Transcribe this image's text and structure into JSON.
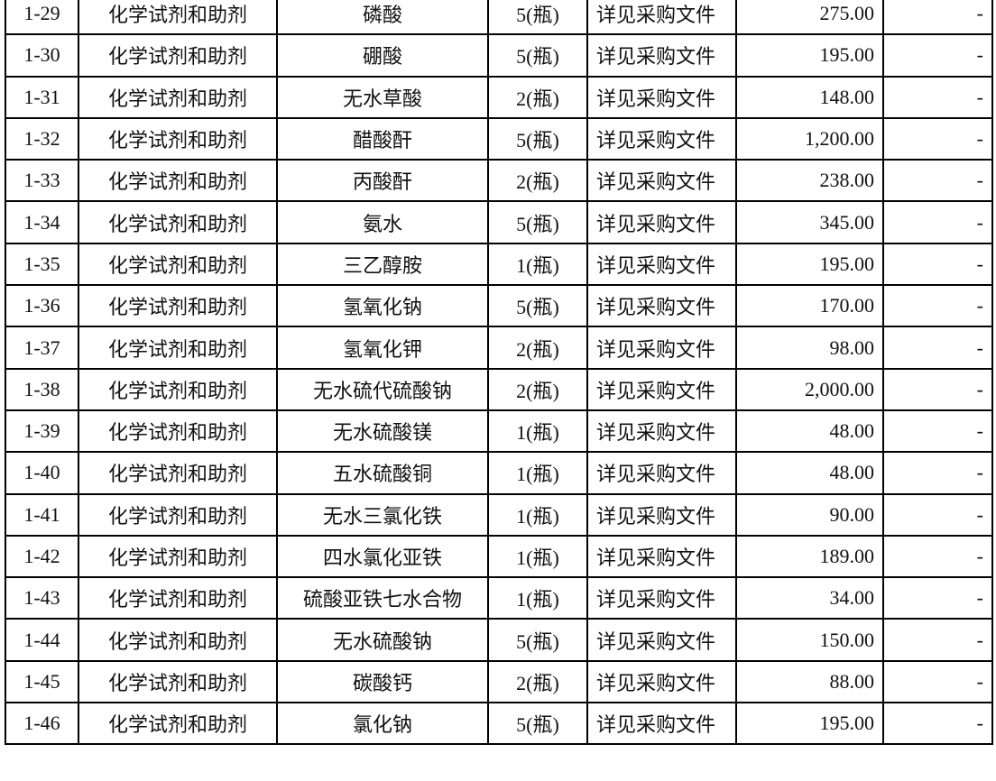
{
  "table": {
    "rows": [
      [
        "1-29",
        "化学试剂和助剂",
        "磷酸",
        "5(瓶)",
        "详见采购文件",
        "275.00",
        "-"
      ],
      [
        "1-30",
        "化学试剂和助剂",
        "硼酸",
        "5(瓶)",
        "详见采购文件",
        "195.00",
        "-"
      ],
      [
        "1-31",
        "化学试剂和助剂",
        "无水草酸",
        "2(瓶)",
        "详见采购文件",
        "148.00",
        "-"
      ],
      [
        "1-32",
        "化学试剂和助剂",
        "醋酸酐",
        "5(瓶)",
        "详见采购文件",
        "1,200.00",
        "-"
      ],
      [
        "1-33",
        "化学试剂和助剂",
        "丙酸酐",
        "2(瓶)",
        "详见采购文件",
        "238.00",
        "-"
      ],
      [
        "1-34",
        "化学试剂和助剂",
        "氨水",
        "5(瓶)",
        "详见采购文件",
        "345.00",
        "-"
      ],
      [
        "1-35",
        "化学试剂和助剂",
        "三乙醇胺",
        "1(瓶)",
        "详见采购文件",
        "195.00",
        "-"
      ],
      [
        "1-36",
        "化学试剂和助剂",
        "氢氧化钠",
        "5(瓶)",
        "详见采购文件",
        "170.00",
        "-"
      ],
      [
        "1-37",
        "化学试剂和助剂",
        "氢氧化钾",
        "2(瓶)",
        "详见采购文件",
        "98.00",
        "-"
      ],
      [
        "1-38",
        "化学试剂和助剂",
        "无水硫代硫酸钠",
        "2(瓶)",
        "详见采购文件",
        "2,000.00",
        "-"
      ],
      [
        "1-39",
        "化学试剂和助剂",
        "无水硫酸镁",
        "1(瓶)",
        "详见采购文件",
        "48.00",
        "-"
      ],
      [
        "1-40",
        "化学试剂和助剂",
        "五水硫酸铜",
        "1(瓶)",
        "详见采购文件",
        "48.00",
        "-"
      ],
      [
        "1-41",
        "化学试剂和助剂",
        "无水三氯化铁",
        "1(瓶)",
        "详见采购文件",
        "90.00",
        "-"
      ],
      [
        "1-42",
        "化学试剂和助剂",
        "四水氯化亚铁",
        "1(瓶)",
        "详见采购文件",
        "189.00",
        "-"
      ],
      [
        "1-43",
        "化学试剂和助剂",
        "硫酸亚铁七水合物",
        "1(瓶)",
        "详见采购文件",
        "34.00",
        "-"
      ],
      [
        "1-44",
        "化学试剂和助剂",
        "无水硫酸钠",
        "5(瓶)",
        "详见采购文件",
        "150.00",
        "-"
      ],
      [
        "1-45",
        "化学试剂和助剂",
        "碳酸钙",
        "2(瓶)",
        "详见采购文件",
        "88.00",
        "-"
      ],
      [
        "1-46",
        "化学试剂和助剂",
        "氯化钠",
        "5(瓶)",
        "详见采购文件",
        "195.00",
        "-"
      ]
    ]
  }
}
